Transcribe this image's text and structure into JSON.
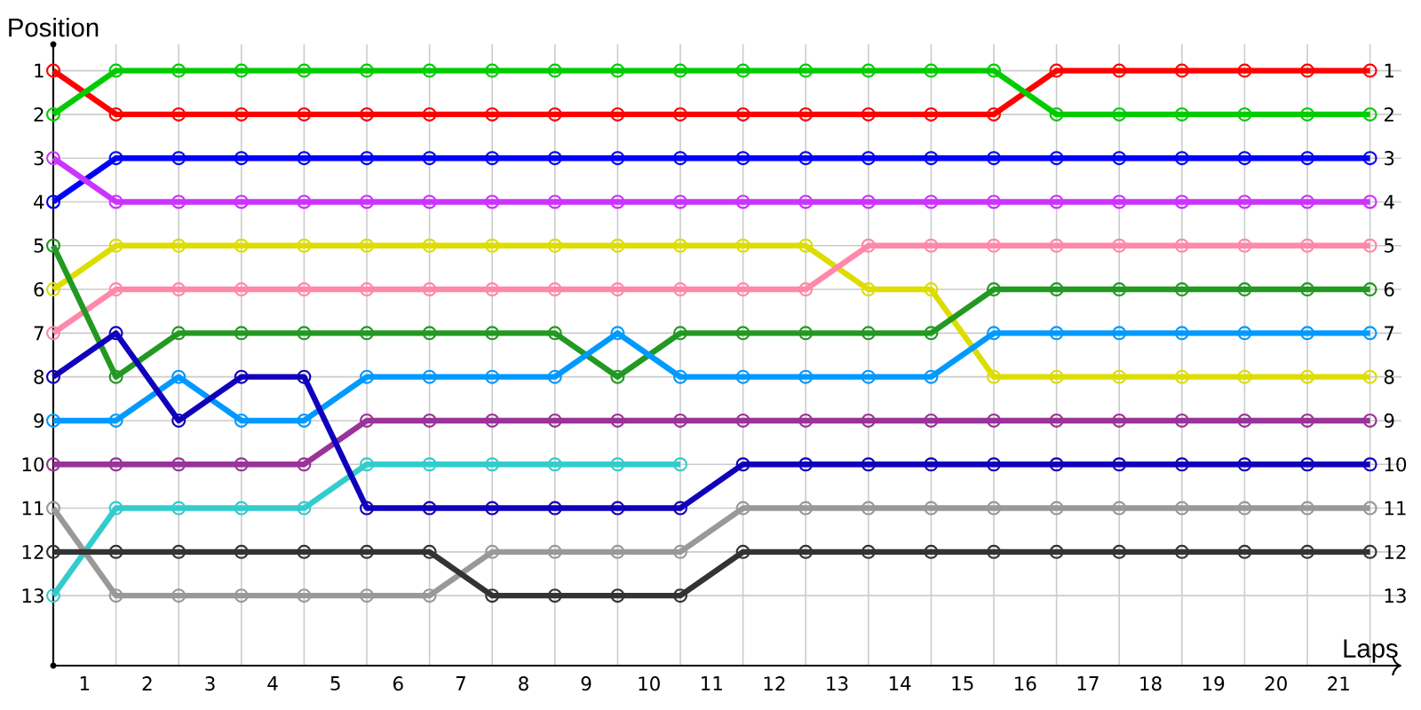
{
  "chart_data": {
    "type": "line",
    "xlabel": "Laps",
    "ylabel": "Position",
    "x": [
      0,
      1,
      2,
      3,
      4,
      5,
      6,
      7,
      8,
      9,
      10,
      11,
      12,
      13,
      14,
      15,
      16,
      17,
      18,
      19,
      20,
      21
    ],
    "xlim": [
      0,
      21.5
    ],
    "xticks": [
      {
        "value": 0.5,
        "label": "1"
      },
      {
        "value": 1.5,
        "label": "2"
      },
      {
        "value": 2.5,
        "label": "3"
      },
      {
        "value": 3.5,
        "label": "4"
      },
      {
        "value": 4.5,
        "label": "5"
      },
      {
        "value": 5.5,
        "label": "6"
      },
      {
        "value": 6.5,
        "label": "7"
      },
      {
        "value": 7.5,
        "label": "8"
      },
      {
        "value": 8.5,
        "label": "9"
      },
      {
        "value": 9.5,
        "label": "10"
      },
      {
        "value": 10.5,
        "label": "11"
      },
      {
        "value": 11.5,
        "label": "12"
      },
      {
        "value": 12.5,
        "label": "13"
      },
      {
        "value": 13.5,
        "label": "14"
      },
      {
        "value": 14.5,
        "label": "15"
      },
      {
        "value": 15.5,
        "label": "16"
      },
      {
        "value": 16.5,
        "label": "17"
      },
      {
        "value": 17.5,
        "label": "18"
      },
      {
        "value": 18.5,
        "label": "19"
      },
      {
        "value": 19.5,
        "label": "20"
      },
      {
        "value": 20.5,
        "label": "21"
      }
    ],
    "ylim": [
      14.6,
      0.4
    ],
    "yticks": [
      1,
      2,
      3,
      4,
      5,
      6,
      7,
      8,
      9,
      10,
      11,
      12,
      13
    ],
    "y2lim": [
      14.6,
      0.4
    ],
    "y2ticks": [
      1,
      2,
      3,
      4,
      5,
      6,
      7,
      8,
      9,
      10,
      11,
      12,
      13
    ],
    "grid": true,
    "marker": "circle",
    "series": [
      {
        "color": "#ff0000",
        "values": [
          1,
          2,
          2,
          2,
          2,
          2,
          2,
          2,
          2,
          2,
          2,
          2,
          2,
          2,
          2,
          2,
          1,
          1,
          1,
          1,
          1,
          1
        ]
      },
      {
        "color": "#00cc00",
        "values": [
          2,
          1,
          1,
          1,
          1,
          1,
          1,
          1,
          1,
          1,
          1,
          1,
          1,
          1,
          1,
          1,
          2,
          2,
          2,
          2,
          2,
          2
        ]
      },
      {
        "color": "#0000ff",
        "values": [
          4,
          3,
          3,
          3,
          3,
          3,
          3,
          3,
          3,
          3,
          3,
          3,
          3,
          3,
          3,
          3,
          3,
          3,
          3,
          3,
          3,
          3
        ]
      },
      {
        "color": "#cc33ff",
        "values": [
          3,
          4,
          4,
          4,
          4,
          4,
          4,
          4,
          4,
          4,
          4,
          4,
          4,
          4,
          4,
          4,
          4,
          4,
          4,
          4,
          4,
          4
        ]
      },
      {
        "color": "#dddd00",
        "values": [
          6,
          5,
          5,
          5,
          5,
          5,
          5,
          5,
          5,
          5,
          5,
          5,
          5,
          6,
          6,
          8,
          8,
          8,
          8,
          8,
          8,
          8
        ]
      },
      {
        "color": "#ff88aa",
        "values": [
          7,
          6,
          6,
          6,
          6,
          6,
          6,
          6,
          6,
          6,
          6,
          6,
          6,
          5,
          5,
          5,
          5,
          5,
          5,
          5,
          5,
          5
        ]
      },
      {
        "color": "#229922",
        "values": [
          5,
          8,
          7,
          7,
          7,
          7,
          7,
          7,
          7,
          8,
          7,
          7,
          7,
          7,
          7,
          6,
          6,
          6,
          6,
          6,
          6,
          6
        ]
      },
      {
        "color": "#0099ff",
        "values": [
          9,
          9,
          8,
          9,
          9,
          8,
          8,
          8,
          8,
          7,
          8,
          8,
          8,
          8,
          8,
          7,
          7,
          7,
          7,
          7,
          7,
          7
        ]
      },
      {
        "color": "#993399",
        "values": [
          10,
          10,
          10,
          10,
          10,
          9,
          9,
          9,
          9,
          9,
          9,
          9,
          9,
          9,
          9,
          9,
          9,
          9,
          9,
          9,
          9,
          9
        ]
      },
      {
        "color": "#33cccc",
        "values": [
          13,
          11,
          11,
          11,
          11,
          10,
          10,
          10,
          10,
          10,
          10,
          null,
          null,
          null,
          null,
          null,
          null,
          null,
          null,
          null,
          null,
          null
        ]
      },
      {
        "color": "#1100bb",
        "values": [
          8,
          7,
          9,
          8,
          8,
          11,
          11,
          11,
          11,
          11,
          11,
          10,
          10,
          10,
          10,
          10,
          10,
          10,
          10,
          10,
          10,
          10
        ]
      },
      {
        "color": "#999999",
        "values": [
          11,
          13,
          13,
          13,
          13,
          13,
          13,
          12,
          12,
          12,
          12,
          11,
          11,
          11,
          11,
          11,
          11,
          11,
          11,
          11,
          11,
          11
        ]
      },
      {
        "color": "#333333",
        "values": [
          12,
          12,
          12,
          12,
          12,
          12,
          12,
          13,
          13,
          13,
          13,
          12,
          12,
          12,
          12,
          12,
          12,
          12,
          12,
          12,
          12,
          12
        ]
      }
    ]
  }
}
